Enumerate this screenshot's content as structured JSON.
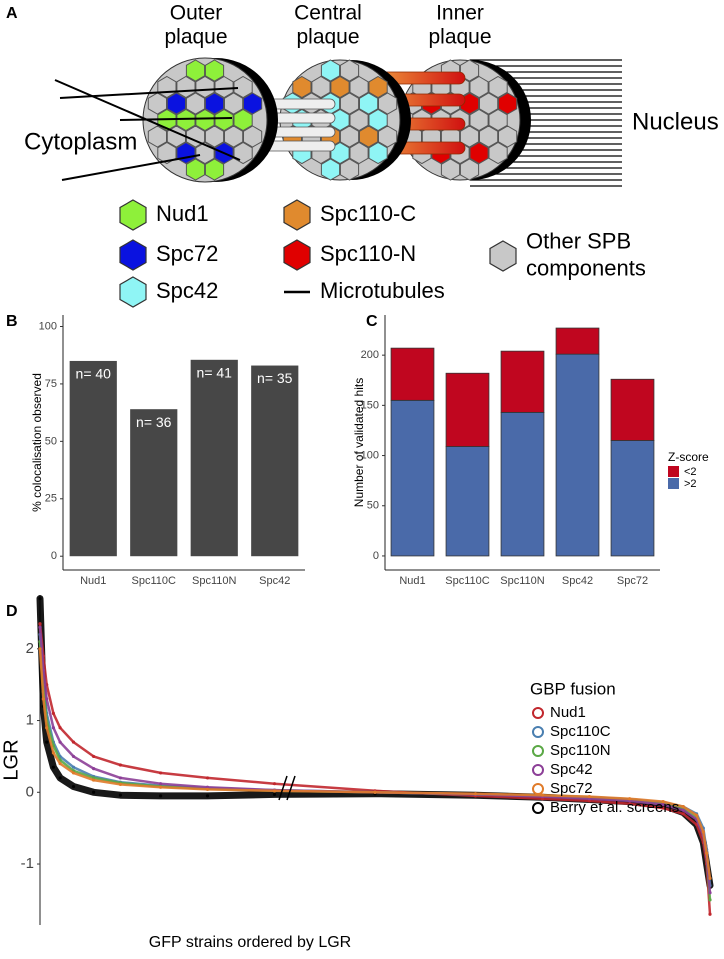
{
  "panel_a": {
    "label": "A",
    "plaques": [
      {
        "lines": [
          "Outer",
          "plaque"
        ]
      },
      {
        "lines": [
          "Central",
          "plaque"
        ]
      },
      {
        "lines": [
          "Inner",
          "plaque"
        ]
      }
    ],
    "cytoplasm": "Cytoplasm",
    "nucleus": "Nucleus",
    "legend": [
      {
        "lines": [
          "Nud1"
        ],
        "color": "#8ef03a"
      },
      {
        "lines": [
          "Spc72"
        ],
        "color": "#0a12e0"
      },
      {
        "lines": [
          "Spc42"
        ],
        "color": "#8ff5f5"
      },
      {
        "lines": [
          "Spc110-C"
        ],
        "color": "#e08a2e"
      },
      {
        "lines": [
          "Spc110-N"
        ],
        "color": "#e00000"
      },
      {
        "lines": [
          "Microtubules"
        ]
      },
      {
        "lines": [
          "Other SPB",
          "components"
        ],
        "color": "#c8c8c8"
      }
    ]
  },
  "chart_data": [
    {
      "type": "bar",
      "panel_label": "B",
      "ylabel": "% colocalisation observed",
      "categories": [
        "Nud1",
        "Spc110C",
        "Spc110N",
        "Spc42"
      ],
      "values": [
        85,
        64,
        85.5,
        83
      ],
      "annotations": [
        "n= 40",
        "n= 36",
        "n= 41",
        "n= 35"
      ],
      "color": "#474747",
      "ylim": [
        -6,
        105
      ],
      "yticks": [
        0,
        25,
        50,
        75,
        100
      ]
    },
    {
      "type": "stacked_bar",
      "panel_label": "C",
      "ylabel": "Number of validated hits",
      "categories": [
        "Nud1",
        "Spc110C",
        "Spc110N",
        "Spc42",
        "Spc72"
      ],
      "series": [
        {
          "name": ">2",
          "color": "#4a6aa9",
          "values": [
            155,
            109,
            143,
            201,
            115
          ]
        },
        {
          "name": "<2",
          "color": "#c0061f",
          "values": [
            52,
            73,
            61,
            26,
            61
          ]
        }
      ],
      "legend_title": "Z-score",
      "ylim": [
        -14,
        240
      ],
      "yticks": [
        0,
        50,
        100,
        150,
        200
      ]
    },
    {
      "type": "line",
      "panel_label": "D",
      "ylabel": "LGR",
      "xlabel": "GFP strains ordered by LGR",
      "legend_title": "GBP fusion",
      "x": [
        0,
        0.5,
        1,
        2,
        3,
        5,
        8,
        12,
        18,
        25,
        35,
        50,
        65,
        75,
        82,
        88,
        93,
        96,
        98,
        99,
        99.5,
        100
      ],
      "series": [
        {
          "name": "Berry et al. screens",
          "color": "#000000",
          "values": [
            2.7,
            1.2,
            0.7,
            0.35,
            0.2,
            0.08,
            0,
            -0.04,
            -0.05,
            -0.05,
            -0.03,
            -0.02,
            -0.04,
            -0.07,
            -0.1,
            -0.13,
            -0.18,
            -0.28,
            -0.45,
            -0.7,
            -1.0,
            -1.3
          ]
        },
        {
          "name": "Nud1",
          "color": "#c1272d",
          "values": [
            2.35,
            1.9,
            1.5,
            1.1,
            0.9,
            0.7,
            0.5,
            0.38,
            0.27,
            0.2,
            0.12,
            0.02,
            -0.05,
            -0.09,
            -0.12,
            -0.16,
            -0.22,
            -0.3,
            -0.45,
            -0.7,
            -1.0,
            -1.7
          ]
        },
        {
          "name": "Spc110C",
          "color": "#4a7fb0",
          "values": [
            2.2,
            1.5,
            1.1,
            0.7,
            0.5,
            0.35,
            0.22,
            0.14,
            0.09,
            0.06,
            0.03,
            0,
            -0.03,
            -0.05,
            -0.07,
            -0.1,
            -0.14,
            -0.2,
            -0.3,
            -0.5,
            -0.8,
            -1.3
          ]
        },
        {
          "name": "Spc110N",
          "color": "#5aa845",
          "values": [
            2.1,
            1.4,
            1.0,
            0.65,
            0.45,
            0.3,
            0.2,
            0.13,
            0.08,
            0.05,
            0.02,
            0,
            -0.03,
            -0.05,
            -0.08,
            -0.11,
            -0.16,
            -0.22,
            -0.35,
            -0.6,
            -0.9,
            -1.5
          ]
        },
        {
          "name": "Spc42",
          "color": "#8c3f97",
          "values": [
            2.3,
            1.7,
            1.3,
            0.9,
            0.7,
            0.5,
            0.33,
            0.2,
            0.12,
            0.07,
            0.03,
            0,
            -0.03,
            -0.06,
            -0.09,
            -0.12,
            -0.17,
            -0.25,
            -0.38,
            -0.6,
            -0.9,
            -1.4
          ]
        },
        {
          "name": "Spc72",
          "color": "#e07b2a",
          "values": [
            2.0,
            1.3,
            0.9,
            0.55,
            0.4,
            0.27,
            0.17,
            0.11,
            0.07,
            0.04,
            0.02,
            0,
            -0.02,
            -0.04,
            -0.06,
            -0.09,
            -0.13,
            -0.2,
            -0.32,
            -0.55,
            -0.85,
            -1.2
          ]
        }
      ],
      "xlim": [
        0,
        100
      ],
      "ylim": [
        -1.85,
        2.75
      ],
      "yticks": [
        -1,
        0,
        1,
        2
      ]
    }
  ]
}
